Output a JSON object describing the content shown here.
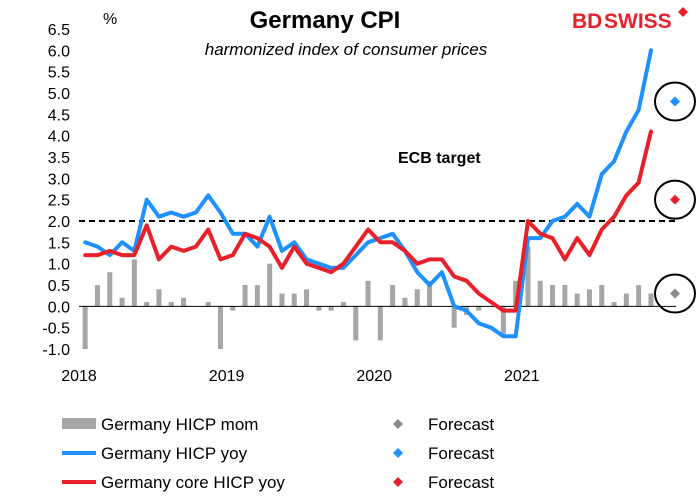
{
  "chart_data": {
    "type": "bar+line",
    "title": "Germany CPI",
    "subtitle": "harmonized index of consumer prices",
    "ylabel": "%",
    "ylim": [
      -1.0,
      6.5
    ],
    "yticks": [
      "6.5",
      "6.0",
      "5.5",
      "5.0",
      "4.5",
      "4.0",
      "3.5",
      "3.0",
      "2.5",
      "2.0",
      "1.5",
      "1.0",
      "0.5",
      "0.0",
      "-0.5",
      "-1.0"
    ],
    "xticks": [
      "2018",
      "2019",
      "2020",
      "2021"
    ],
    "x_start": "2018-01",
    "annotation": "ECB target",
    "target_value": 2.0,
    "series": [
      {
        "name": "Germany HICP mom",
        "kind": "bar",
        "color": "#a6a6a6",
        "values": [
          -1.0,
          0.5,
          0.8,
          0.2,
          1.1,
          0.1,
          0.4,
          0.1,
          0.2,
          0.0,
          0.1,
          -1.0,
          -0.1,
          0.5,
          0.5,
          1.0,
          0.3,
          0.3,
          0.4,
          -0.1,
          -0.1,
          0.1,
          -0.8,
          0.6,
          -0.8,
          0.5,
          0.2,
          0.4,
          0.6,
          0.0,
          -0.5,
          -0.2,
          -0.1,
          0.0,
          -0.7,
          0.6,
          1.4,
          0.6,
          0.5,
          0.5,
          0.3,
          0.4,
          0.5,
          0.1,
          0.3,
          0.5,
          0.3,
          0.0
        ]
      },
      {
        "name": "Germany HICP yoy",
        "kind": "line",
        "color": "#1e90ff",
        "values": [
          1.5,
          1.4,
          1.2,
          1.5,
          1.3,
          2.5,
          2.1,
          2.2,
          2.1,
          2.2,
          2.6,
          2.2,
          1.7,
          1.7,
          1.4,
          2.1,
          1.3,
          1.5,
          1.1,
          1.0,
          0.9,
          0.9,
          1.2,
          1.5,
          1.6,
          1.7,
          1.3,
          0.8,
          0.5,
          0.8,
          0.0,
          -0.1,
          -0.4,
          -0.5,
          -0.7,
          -0.7,
          1.6,
          1.6,
          2.0,
          2.1,
          2.4,
          2.1,
          3.1,
          3.4,
          4.1,
          4.6,
          6.0
        ]
      },
      {
        "name": "Germany core HICP yoy",
        "kind": "line",
        "color": "#e8202a",
        "values": [
          1.2,
          1.2,
          1.3,
          1.2,
          1.2,
          1.9,
          1.1,
          1.4,
          1.3,
          1.4,
          1.8,
          1.1,
          1.2,
          1.7,
          1.6,
          1.4,
          0.9,
          1.4,
          1.0,
          0.9,
          0.8,
          1.0,
          1.4,
          1.8,
          1.5,
          1.5,
          1.3,
          1.0,
          1.1,
          1.1,
          0.7,
          0.6,
          0.3,
          0.1,
          -0.1,
          -0.1,
          2.0,
          1.7,
          1.6,
          1.1,
          1.6,
          1.2,
          1.8,
          2.1,
          2.6,
          2.9,
          4.1
        ]
      }
    ],
    "forecasts": [
      {
        "name": "Forecast",
        "series": "Germany HICP mom",
        "value": 0.3,
        "color": "#8c8c8c"
      },
      {
        "name": "Forecast",
        "series": "Germany HICP yoy",
        "value": 4.8,
        "color": "#1e90ff"
      },
      {
        "name": "Forecast",
        "series": "Germany core HICP yoy",
        "value": 2.5,
        "color": "#e8202a"
      }
    ],
    "legend": [
      {
        "label": "Germany HICP mom",
        "kind": "bar",
        "color": "#a6a6a6"
      },
      {
        "label": "Forecast",
        "kind": "diamond",
        "color": "#8c8c8c"
      },
      {
        "label": "Germany HICP yoy",
        "kind": "line",
        "color": "#1e90ff"
      },
      {
        "label": "Forecast",
        "kind": "diamond",
        "color": "#1e90ff"
      },
      {
        "label": "Germany core HICP yoy",
        "kind": "line",
        "color": "#e8202a"
      },
      {
        "label": "Forecast",
        "kind": "diamond",
        "color": "#e8202a"
      }
    ]
  },
  "logo": {
    "part1": "BD",
    "part2": "SWISS",
    "color": "#e8202a"
  }
}
